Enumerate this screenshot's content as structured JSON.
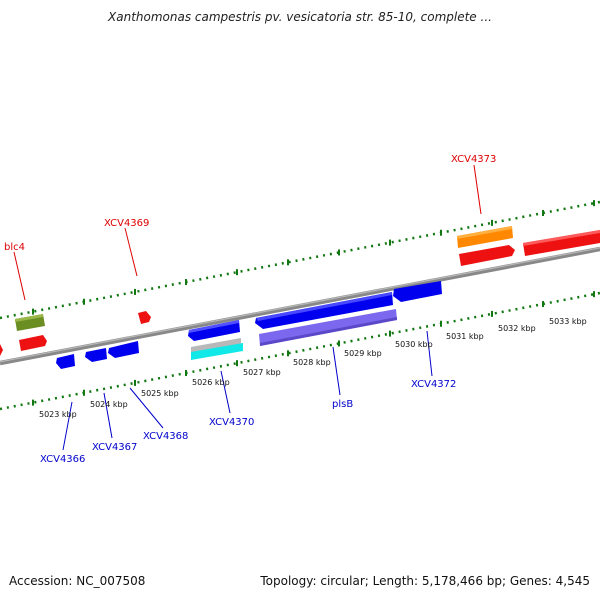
{
  "title": "Xanthomonas campestris pv. vesicatoria str. 85-10, complete ...",
  "footer": {
    "accession": "Accession: NC_007508",
    "summary": "Topology: circular; Length: 5,178,466 bp; Genes: 4,545"
  },
  "colors": {
    "forward_label": "#dd0000",
    "reverse_label": "#0000cc",
    "tick": "#117711",
    "backbone": "#808080"
  },
  "ticks": [
    {
      "label": "5023 kbp",
      "value": 5023
    },
    {
      "label": "5024 kbp",
      "value": 5024
    },
    {
      "label": "5025 kbp",
      "value": 5025
    },
    {
      "label": "5026 kbp",
      "value": 5026
    },
    {
      "label": "5027 kbp",
      "value": 5027
    },
    {
      "label": "5028 kbp",
      "value": 5028
    },
    {
      "label": "5029 kbp",
      "value": 5029
    },
    {
      "label": "5030 kbp",
      "value": 5030
    },
    {
      "label": "5031 kbp",
      "value": 5031
    },
    {
      "label": "5032 kbp",
      "value": 5032
    },
    {
      "label": "5033 kbp",
      "value": 5033
    }
  ],
  "gene_labels": [
    {
      "text": "blc4",
      "strand": "forward"
    },
    {
      "text": "XCV4369",
      "strand": "forward"
    },
    {
      "text": "XCV4373",
      "strand": "forward"
    },
    {
      "text": "XCV4366",
      "strand": "reverse"
    },
    {
      "text": "XCV4367",
      "strand": "reverse"
    },
    {
      "text": "XCV4368",
      "strand": "reverse"
    },
    {
      "text": "XCV4370",
      "strand": "reverse"
    },
    {
      "text": "plsB",
      "strand": "reverse"
    },
    {
      "text": "XCV4372",
      "strand": "reverse"
    }
  ]
}
